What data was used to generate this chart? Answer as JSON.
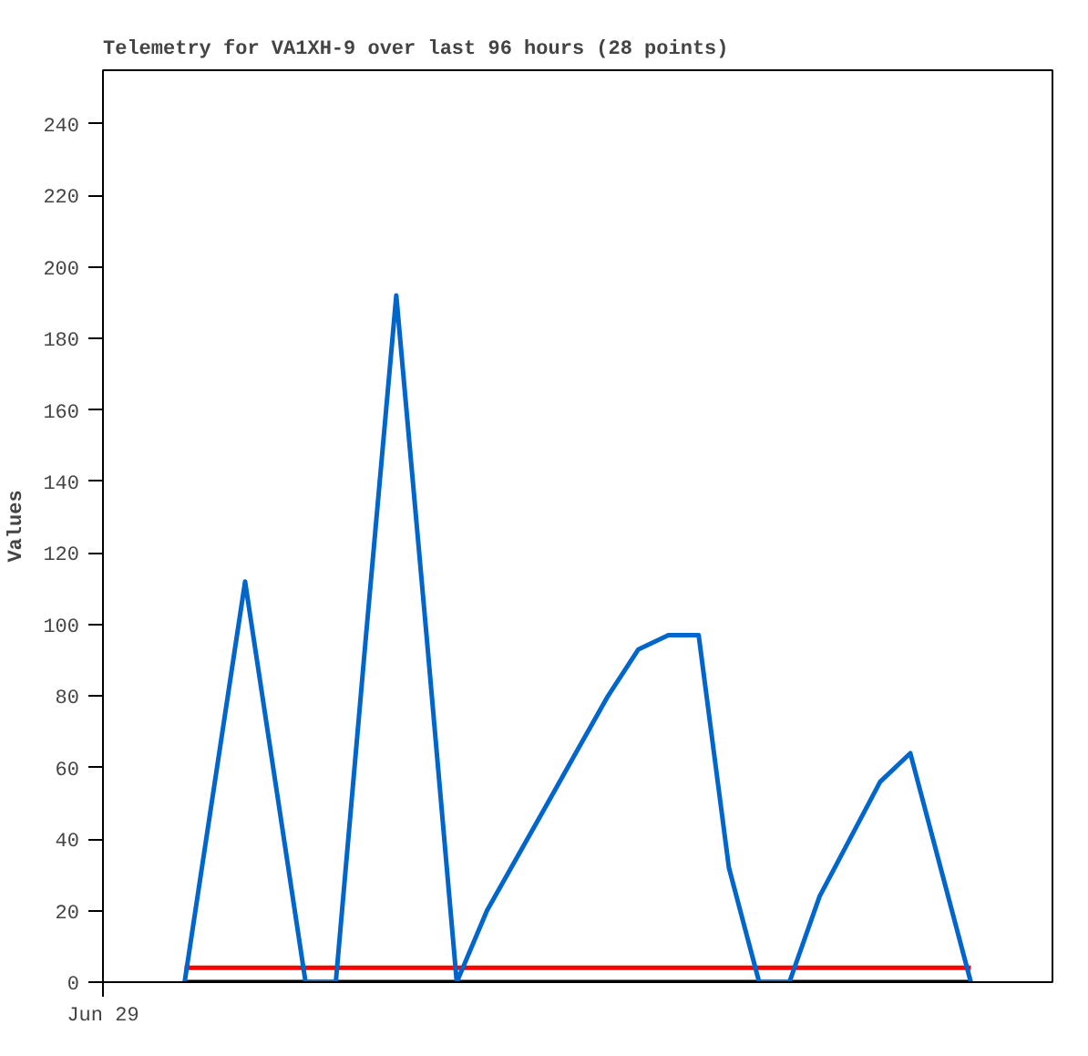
{
  "chart_data": {
    "type": "line",
    "title": "Telemetry for VA1XH-9 over last 96 hours (28 points)",
    "ylabel": "Values",
    "categories": [
      null,
      null,
      null,
      null,
      null,
      null,
      null,
      null,
      null,
      null,
      null,
      null,
      null,
      null,
      null,
      null,
      null,
      null,
      null,
      null,
      null,
      null,
      null,
      null,
      null,
      null,
      null
    ],
    "annotations": [
      "Jun 29"
    ],
    "ylim": [
      0,
      255
    ],
    "yticks": [
      0,
      20,
      40,
      60,
      80,
      100,
      120,
      140,
      160,
      180,
      200,
      220,
      240
    ],
    "grid": false,
    "marker": "none",
    "line_style": "solid",
    "ref_lines": [
      {
        "axis": "y",
        "value": 4,
        "color": "#ff0000"
      },
      {
        "axis": "y",
        "value": 0,
        "color": "#000000"
      }
    ],
    "series": [
      {
        "color": "#0066cc",
        "values": [
          0,
          56,
          112,
          56,
          0,
          0,
          97,
          192,
          97,
          0,
          20,
          35,
          50,
          65,
          80,
          93,
          97,
          97,
          32,
          0,
          0,
          24,
          40,
          56,
          64,
          32,
          0
        ]
      }
    ]
  }
}
